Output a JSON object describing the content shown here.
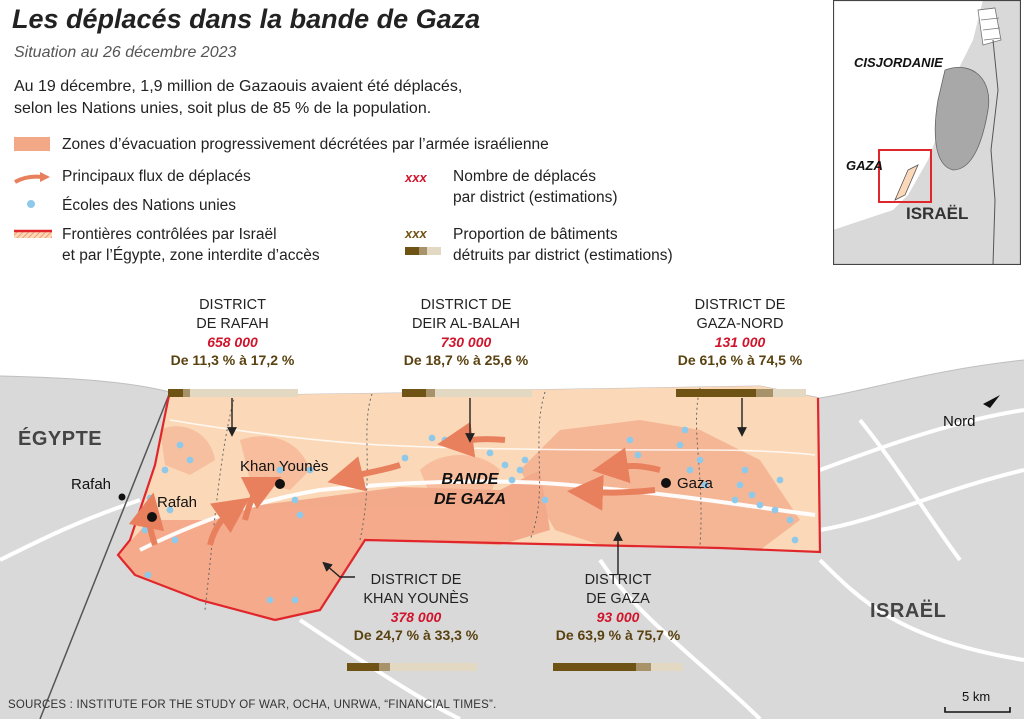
{
  "title": "Les déplacés dans la bande de Gaza",
  "subtitle": "Situation au 26 décembre 2023",
  "intro_line1": "Au 19 décembre, 1,9 million de Gazaouis avaient été déplacés,",
  "intro_line2": "selon les Nations unies, soit plus de 85 % de la population.",
  "legend": {
    "evacuation": "Zones d’évacuation progressivement décrétées par l’armée israélienne",
    "flows": "Principaux flux de déplacés",
    "schools": "Écoles des Nations unies",
    "borders_line1": "Frontières contrôlées par Israël",
    "borders_line2": "et par l’Égypte, zone interdite d’accès",
    "xxx_red": "xxx",
    "displaced_line1": "Nombre de déplacés",
    "displaced_line2": "par district (estimations)",
    "xxx_brown": "xxx",
    "destroyed_line1": "Proportion de bâtiments",
    "destroyed_line2": "détruits par district (estimations)"
  },
  "districts": {
    "rafah": {
      "line1": "DISTRICT",
      "line2": "DE RAFAH",
      "displaced": "658 000",
      "pct": "De 11,3 % à 17,2 %",
      "low": 0.113,
      "high": 0.172
    },
    "deir": {
      "line1": "DISTRICT DE",
      "line2": "DEIR AL-BALAH",
      "displaced": "730 000",
      "pct": "De 18,7 % à 25,6 %",
      "low": 0.187,
      "high": 0.256
    },
    "gaza_nord": {
      "line1": "DISTRICT DE",
      "line2": "GAZA-NORD",
      "displaced": "131 000",
      "pct": "De 61,6 % à 74,5 %",
      "low": 0.616,
      "high": 0.745
    },
    "khan": {
      "line1": "DISTRICT DE",
      "line2": "KHAN YOUNÈS",
      "displaced": "378 000",
      "pct": "De 24,7 % à 33,3 %",
      "low": 0.247,
      "high": 0.333
    },
    "gaza": {
      "line1": "DISTRICT",
      "line2": "DE GAZA",
      "displaced": "93 000",
      "pct": "De 63,9 % à 75,7 %",
      "low": 0.639,
      "high": 0.757
    }
  },
  "map_labels": {
    "egypte": "ÉGYPTE",
    "israel": "ISRAËL",
    "bande_line1": "BANDE",
    "bande_line2": "DE GAZA",
    "rafah_outside": "Rafah",
    "rafah": "Rafah",
    "khan_younes": "Khan Younès",
    "gaza": "Gaza",
    "nord": "Nord",
    "scale": "5 km"
  },
  "inset": {
    "cisjordanie": "CISJORDANIE",
    "gaza": "GAZA",
    "israel": "ISRAËL"
  },
  "sources": "SOURCES : INSTITUTE FOR THE STUDY OF WAR, OCHA, UNRWA, “FINANCIAL TIMES”.",
  "colors": {
    "evacuation": "#f3a888",
    "strip": "#fbd9b8",
    "border_red": "#e0262b",
    "arrow": "#e8805e",
    "school": "#8fc9ea",
    "displaced_red": "#d0142c",
    "bar_dark": "#6e5314",
    "bar_mid": "#a8926a",
    "bar_light": "#e3d9c3",
    "land": "#d9d9d9",
    "sea": "#ffffff"
  }
}
